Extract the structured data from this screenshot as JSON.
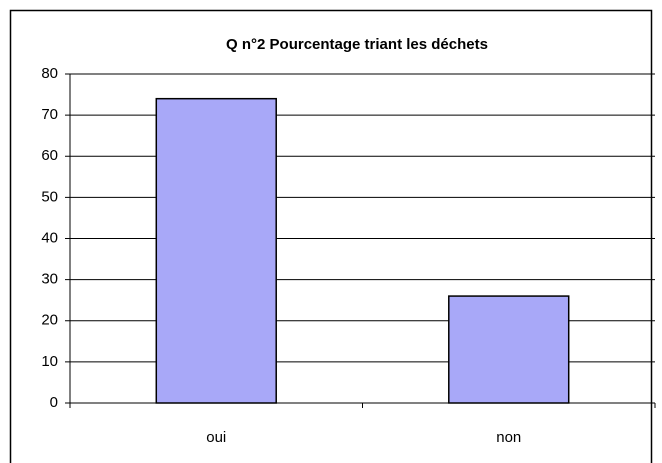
{
  "chart_data": {
    "type": "bar",
    "title": "Q n°2 Pourcentage triant les déchets",
    "categories": [
      "oui",
      "non"
    ],
    "values": [
      74,
      26
    ],
    "color": "#a8a8f8",
    "ylim": [
      0,
      80
    ],
    "yticks": [
      0,
      10,
      20,
      30,
      40,
      50,
      60,
      70,
      80
    ],
    "grid": true
  }
}
